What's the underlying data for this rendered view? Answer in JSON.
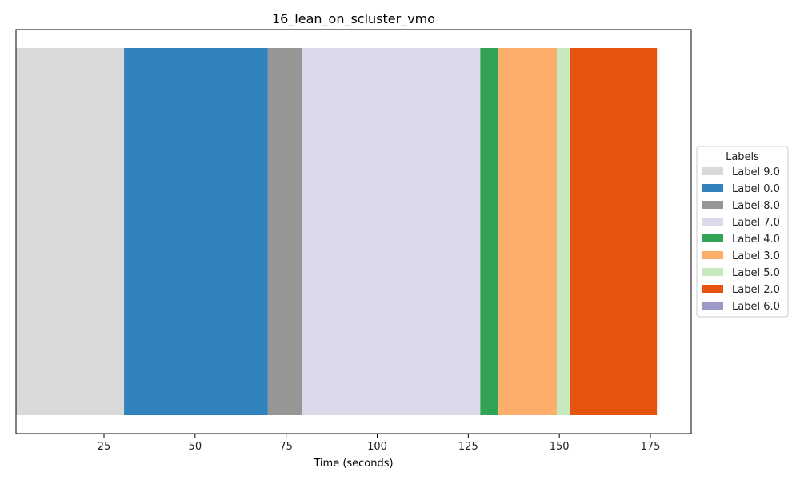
{
  "chart_data": {
    "type": "bar",
    "orientation": "horizontal-segments",
    "title": "16_lean_on_scluster_vmo",
    "xlabel": "Time (seconds)",
    "ylabel": "",
    "xlim": [
      0,
      185
    ],
    "xticks": [
      25,
      50,
      75,
      100,
      125,
      150,
      175
    ],
    "segments": [
      {
        "label": "Label 9.0",
        "start": 0,
        "end": 30.5,
        "color": "#d9d9d9"
      },
      {
        "label": "Label 0.0",
        "start": 30.5,
        "end": 70,
        "color": "#3182bd"
      },
      {
        "label": "Label 8.0",
        "start": 70,
        "end": 79.5,
        "color": "#969696"
      },
      {
        "label": "Label 7.0",
        "start": 79.5,
        "end": 128.3,
        "color": "#dadaeb"
      },
      {
        "label": "Label 4.0",
        "start": 128.3,
        "end": 133.3,
        "color": "#31a354"
      },
      {
        "label": "Label 3.0",
        "start": 133.3,
        "end": 149.3,
        "color": "#fdae6b"
      },
      {
        "label": "Label 5.0",
        "start": 149.3,
        "end": 153,
        "color": "#c7e9c0"
      },
      {
        "label": "Label 2.0",
        "start": 153,
        "end": 176.8,
        "color": "#e6550d"
      }
    ],
    "legend": {
      "title": "Labels",
      "placement": "outside-right",
      "entries": [
        {
          "label": "Label 9.0",
          "color": "#d9d9d9"
        },
        {
          "label": "Label 0.0",
          "color": "#3182bd"
        },
        {
          "label": "Label 8.0",
          "color": "#969696"
        },
        {
          "label": "Label 7.0",
          "color": "#dadaeb"
        },
        {
          "label": "Label 4.0",
          "color": "#31a354"
        },
        {
          "label": "Label 3.0",
          "color": "#fdae6b"
        },
        {
          "label": "Label 5.0",
          "color": "#c7e9c0"
        },
        {
          "label": "Label 2.0",
          "color": "#e6550d"
        },
        {
          "label": "Label 6.0",
          "color": "#9e9ac8"
        }
      ]
    },
    "grid": false
  }
}
